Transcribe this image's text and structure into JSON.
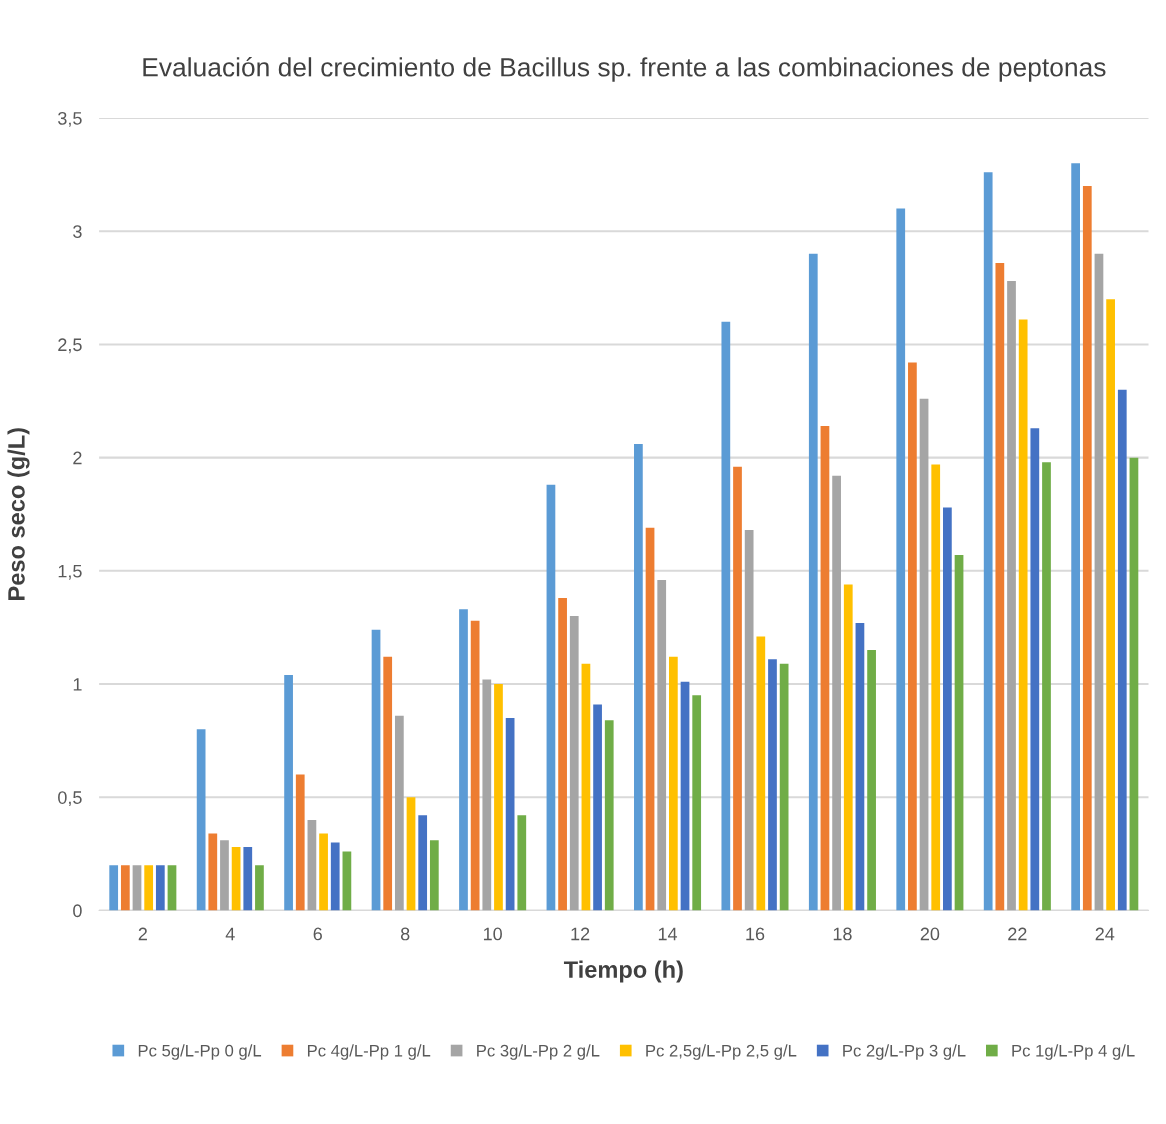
{
  "chart_data": {
    "type": "bar",
    "title": "Evaluación del crecimiento de Bacillus sp. frente a las combinaciones de peptonas",
    "xlabel": "Tiempo (h)",
    "ylabel": "Peso seco (g/L)",
    "categories": [
      "2",
      "4",
      "6",
      "8",
      "10",
      "12",
      "14",
      "16",
      "18",
      "20",
      "22",
      "24"
    ],
    "series": [
      {
        "name": "Pc 5g/L-Pp 0 g/L",
        "color": "#5b9bd5",
        "values": [
          0.2,
          0.8,
          1.04,
          1.24,
          1.33,
          1.88,
          2.06,
          2.6,
          2.9,
          3.1,
          3.26,
          3.3
        ]
      },
      {
        "name": "Pc 4g/L-Pp 1 g/L",
        "color": "#ed7d31",
        "values": [
          0.2,
          0.34,
          0.6,
          1.12,
          1.28,
          1.38,
          1.69,
          1.96,
          2.14,
          2.42,
          2.86,
          3.2
        ]
      },
      {
        "name": "Pc 3g/L-Pp 2 g/L",
        "color": "#a5a5a5",
        "values": [
          0.2,
          0.31,
          0.4,
          0.86,
          1.02,
          1.3,
          1.46,
          1.68,
          1.92,
          2.26,
          2.78,
          2.9
        ]
      },
      {
        "name": "Pc 2,5g/L-Pp 2,5 g/L",
        "color": "#ffc000",
        "values": [
          0.2,
          0.28,
          0.34,
          0.5,
          1.0,
          1.09,
          1.12,
          1.21,
          1.44,
          1.97,
          2.61,
          2.7
        ]
      },
      {
        "name": "Pc 2g/L-Pp 3 g/L",
        "color": "#4472c4",
        "values": [
          0.2,
          0.28,
          0.3,
          0.42,
          0.85,
          0.91,
          1.01,
          1.11,
          1.27,
          1.78,
          2.13,
          2.3
        ]
      },
      {
        "name": "Pc 1g/L-Pp 4 g/L",
        "color": "#70ad47",
        "values": [
          0.2,
          0.2,
          0.26,
          0.31,
          0.42,
          0.84,
          0.95,
          1.09,
          1.15,
          1.57,
          1.98,
          2.0
        ]
      }
    ],
    "ylim": [
      0,
      3.5
    ],
    "yticks": [
      0,
      {
        "value": 0.5,
        "label": "0,5"
      },
      1,
      {
        "value": 1.5,
        "label": "1,5"
      },
      2,
      {
        "value": 2.5,
        "label": "2,5"
      },
      3,
      {
        "value": 3.5,
        "label": "3,5"
      }
    ],
    "grid": "y",
    "legend": "bottom"
  }
}
